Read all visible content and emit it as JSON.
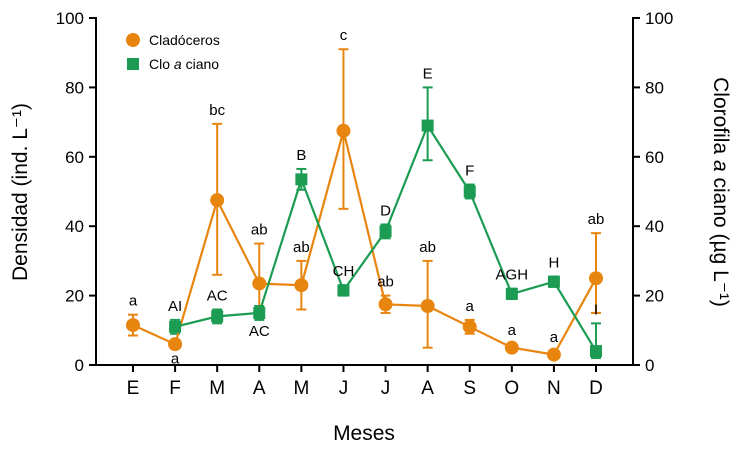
{
  "chart_data": {
    "type": "line",
    "title": "",
    "xlabel": "Meses",
    "ylabel_left": "Densidad (ind. L⁻¹)",
    "ylabel_right": "Clorofila a ciano (µg L⁻¹)",
    "x_categories": [
      "E",
      "F",
      "M",
      "A",
      "M",
      "J",
      "J",
      "A",
      "S",
      "O",
      "N",
      "D"
    ],
    "y_ticks": [
      0,
      20,
      40,
      60,
      80,
      100
    ],
    "ylim": [
      0,
      100
    ],
    "grid": false,
    "legend_position": "top-left",
    "series": [
      {
        "name": "Cladóceros",
        "axis": "left",
        "color": "#E8850F",
        "marker": "circle",
        "values": [
          11.5,
          6,
          47.5,
          23.5,
          23,
          67.5,
          17.5,
          17,
          11,
          5,
          3,
          25
        ],
        "err_up": [
          3,
          1,
          22,
          11.5,
          7,
          23.5,
          2.5,
          13,
          2,
          1,
          1,
          13
        ],
        "err_down": [
          3,
          1,
          21.5,
          8,
          7,
          22.5,
          2.5,
          12,
          2,
          1,
          1,
          10
        ],
        "labels": [
          "a",
          "a",
          "bc",
          "ab",
          "ab",
          "c",
          "ab",
          "ab",
          "a",
          "a",
          "a",
          "ab"
        ],
        "label_pos": [
          "above",
          "below",
          "above",
          "above",
          "above",
          "above",
          "above",
          "above",
          "above",
          "above",
          "above",
          "above"
        ]
      },
      {
        "name": "Clo a ciano",
        "axis": "right",
        "color": "#1B9C52",
        "marker": "square",
        "values": [
          null,
          11,
          14,
          15,
          53.5,
          21.5,
          38.5,
          69,
          50,
          20.5,
          24,
          4
        ],
        "err_up": [
          null,
          2,
          2,
          2,
          3,
          1.5,
          2,
          11,
          2,
          1.5,
          1.5,
          8
        ],
        "err_down": [
          null,
          2,
          2,
          2,
          3,
          1.5,
          2,
          10,
          2,
          1.5,
          1.5,
          2
        ],
        "labels": [
          null,
          "AI",
          "AC",
          "AC",
          "B",
          "CH",
          "D",
          "E",
          "F",
          "AGH",
          "H",
          "I"
        ],
        "label_pos": [
          null,
          "above",
          "above",
          "below",
          "above",
          "above",
          "above",
          "above",
          "above",
          "above",
          "above",
          "above"
        ]
      }
    ]
  }
}
